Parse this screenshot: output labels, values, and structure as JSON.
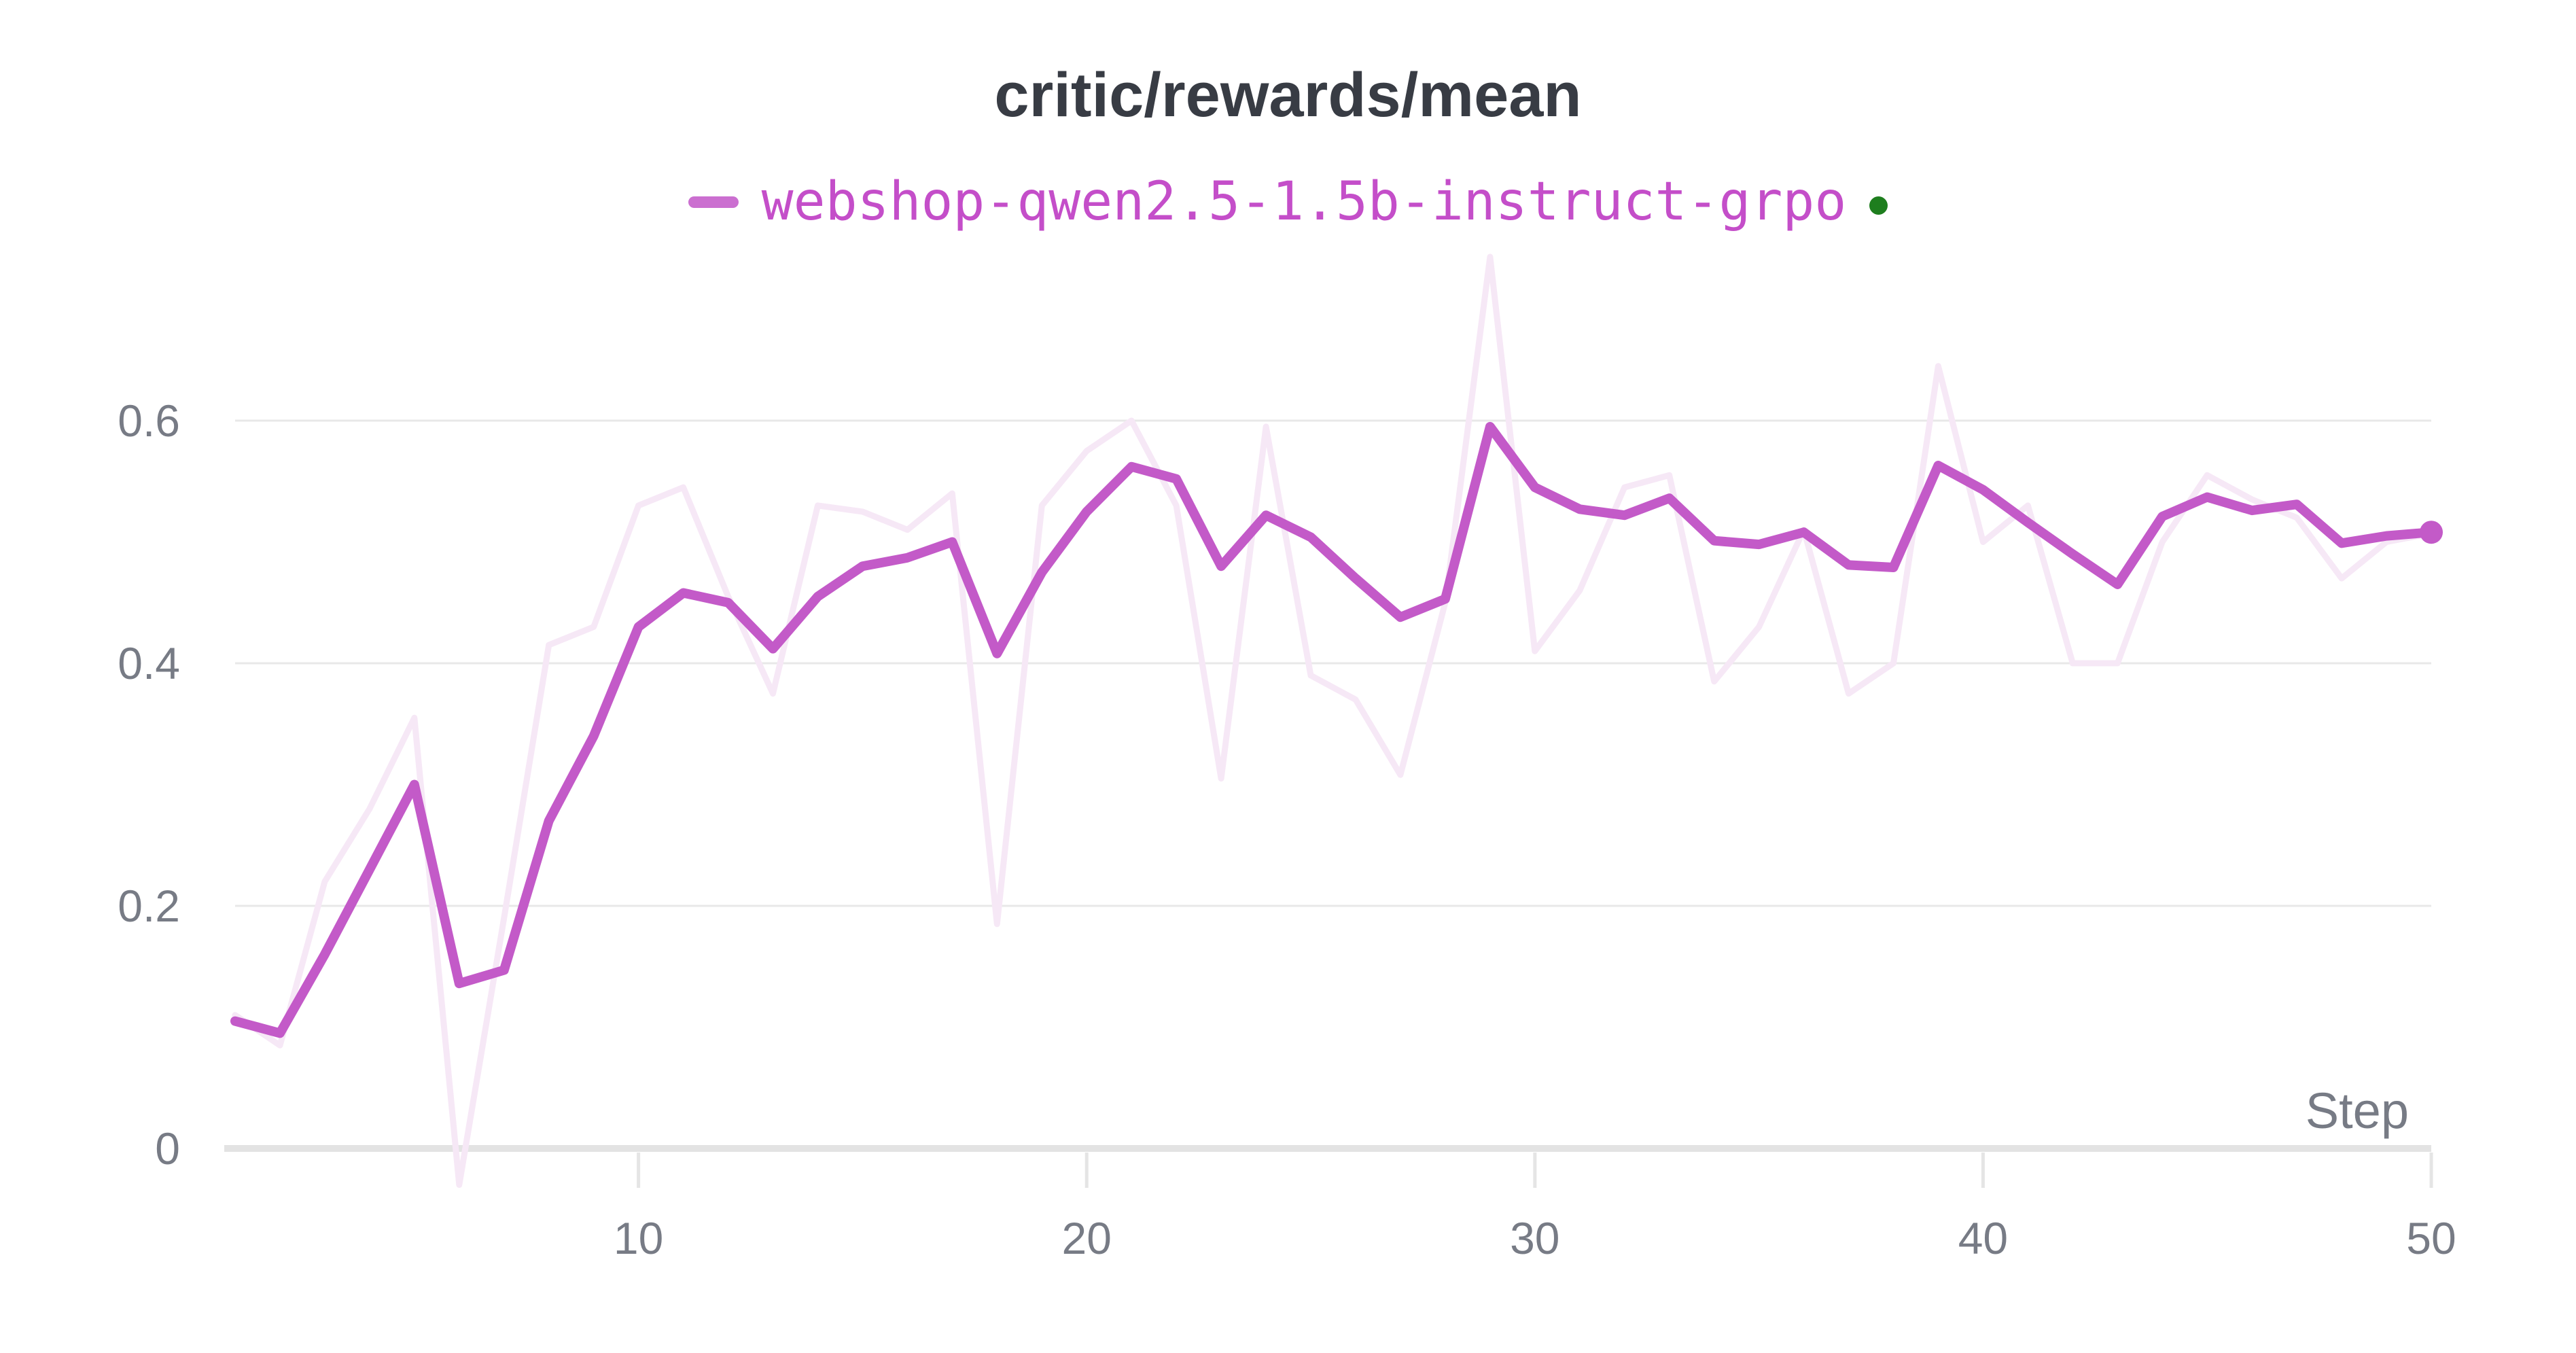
{
  "chart": {
    "title": "critic/rewards/mean",
    "legend": {
      "run_label": "webshop-qwen2.5-1.5b-instruct-grpo",
      "run_color": "#c35ac8",
      "status_dot_color": "#1e7e1e"
    },
    "x_axis": {
      "label": "Step",
      "tick_labels": [
        "10",
        "20",
        "30",
        "40",
        "50"
      ]
    },
    "y_axis": {
      "tick_labels": [
        "0.6",
        "0.4",
        "0.2",
        "0"
      ]
    }
  },
  "chart_data": {
    "type": "line",
    "title": "critic/rewards/mean",
    "xlabel": "Step",
    "ylabel": "",
    "x_range": [
      1,
      50
    ],
    "y_gridline_values": [
      0.6,
      0.4,
      0.2,
      0
    ],
    "x_tick_values": [
      10,
      20,
      30,
      40,
      50
    ],
    "grid": true,
    "legend_position": "top-center",
    "x": [
      1,
      2,
      3,
      4,
      5,
      6,
      7,
      8,
      9,
      10,
      11,
      12,
      13,
      14,
      15,
      16,
      17,
      18,
      19,
      20,
      21,
      22,
      23,
      24,
      25,
      26,
      27,
      28,
      29,
      30,
      31,
      32,
      33,
      34,
      35,
      36,
      37,
      38,
      39,
      40,
      41,
      42,
      43,
      44,
      45,
      46,
      47,
      48,
      49,
      50
    ],
    "series": [
      {
        "name": "webshop-qwen2.5-1.5b-instruct-grpo",
        "role": "smoothed",
        "color": "#c35ac8",
        "stroke_width": 14,
        "values": [
          0.105,
          0.095,
          0.16,
          0.23,
          0.3,
          0.136,
          0.147,
          0.27,
          0.34,
          0.43,
          0.458,
          0.45,
          0.412,
          0.455,
          0.48,
          0.487,
          0.5,
          0.408,
          0.475,
          0.525,
          0.562,
          0.552,
          0.48,
          0.522,
          0.504,
          0.47,
          0.438,
          0.453,
          0.595,
          0.545,
          0.527,
          0.522,
          0.536,
          0.501,
          0.498,
          0.508,
          0.481,
          0.479,
          0.563,
          0.543,
          0.516,
          0.49,
          0.465,
          0.521,
          0.537,
          0.526,
          0.531,
          0.499,
          0.505,
          0.508
        ]
      },
      {
        "name": "webshop-qwen2.5-1.5b-instruct-grpo (original, unsmoothed)",
        "role": "raw",
        "color": "#f6e8f6",
        "stroke_width": 9,
        "values": [
          0.11,
          0.085,
          0.22,
          0.28,
          0.355,
          -0.03,
          0.19,
          0.415,
          0.43,
          0.53,
          0.545,
          0.455,
          0.375,
          0.53,
          0.525,
          0.51,
          0.54,
          0.185,
          0.53,
          0.575,
          0.6,
          0.53,
          0.305,
          0.595,
          0.39,
          0.37,
          0.308,
          0.45,
          0.735,
          0.41,
          0.46,
          0.545,
          0.555,
          0.385,
          0.43,
          0.51,
          0.375,
          0.4,
          0.645,
          0.5,
          0.53,
          0.4,
          0.4,
          0.5,
          0.555,
          0.535,
          0.52,
          0.47,
          0.5,
          0.507
        ]
      }
    ],
    "end_marker": {
      "step": 50,
      "value": 0.508,
      "color": "#c35ac8",
      "radius": 17
    }
  },
  "style": {
    "grid_color": "#e8e8e8",
    "zero_line_color": "#e3e3e3",
    "tick_mark_color": "#e5e5e5"
  }
}
